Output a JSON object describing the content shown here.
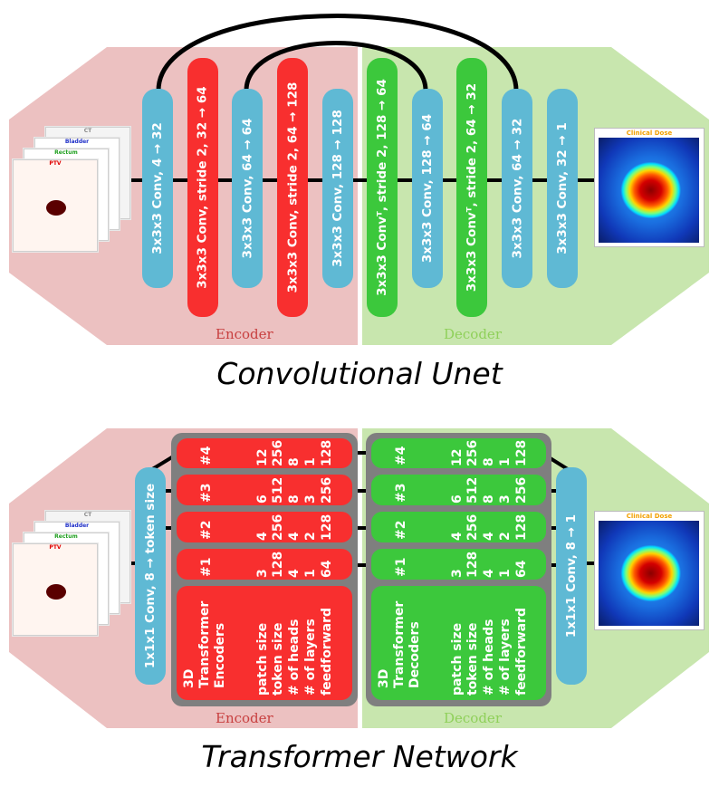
{
  "colors": {
    "encoder_bg": "#ecc1c1",
    "decoder_bg": "#c8e6ae",
    "blue_block": "#5fb9d4",
    "red_block": "#f82f2f",
    "green_block": "#3cc83c",
    "transformer_frame": "#7f7f7f"
  },
  "unet": {
    "title": "Convolutional Unet",
    "encoder_label": "Encoder",
    "decoder_label": "Decoder",
    "blocks": [
      {
        "text": "3x3x3 Conv, 4 → 32",
        "color": "blue"
      },
      {
        "text": "3x3x3 Conv, stride 2, 32 → 64",
        "color": "red"
      },
      {
        "text": "3x3x3 Conv, 64 → 64",
        "color": "blue"
      },
      {
        "text": "3x3x3 Conv, stride 2, 64 → 128",
        "color": "red"
      },
      {
        "text": "3x3x3 Conv, 128 → 128",
        "color": "blue"
      },
      {
        "text": "3x3x3 Convᵀ, stride 2, 128 → 64",
        "color": "green"
      },
      {
        "text": "3x3x3 Conv, 128 → 64",
        "color": "blue"
      },
      {
        "text": "3x3x3 Convᵀ, stride 2, 64 → 32",
        "color": "green"
      },
      {
        "text": "3x3x3 Conv, 64 → 32",
        "color": "blue"
      },
      {
        "text": "3x3x3 Conv, 32 → 1",
        "color": "blue"
      }
    ]
  },
  "inputs": {
    "slices": [
      "CT",
      "Bladder",
      "Rectum",
      "PTV"
    ]
  },
  "output": {
    "title": "Clinical Dose"
  },
  "transformer": {
    "title": "Transformer Network",
    "encoder_label": "Encoder",
    "decoder_label": "Decoder",
    "input_conv": "1x1x1 Conv, 8 → token size",
    "output_conv": "1x1x1 Conv, 8 → 1",
    "encoder_header": {
      "line1": "3D",
      "line2": "Transformer",
      "line3": "Encoders"
    },
    "decoder_header": {
      "line1": "3D",
      "line2": "Transformer",
      "line3": "Decoders"
    },
    "param_names": [
      "patch size",
      "token size",
      "# of heads",
      "# of layers",
      "feedforward"
    ],
    "layers": [
      {
        "id": "#1",
        "values": [
          "3",
          "128",
          "4",
          "1",
          "64"
        ]
      },
      {
        "id": "#2",
        "values": [
          "4",
          "256",
          "4",
          "2",
          "128"
        ]
      },
      {
        "id": "#3",
        "values": [
          "6",
          "512",
          "8",
          "3",
          "256"
        ]
      },
      {
        "id": "#4",
        "values": [
          "12",
          "256",
          "8",
          "1",
          "128"
        ]
      }
    ]
  }
}
